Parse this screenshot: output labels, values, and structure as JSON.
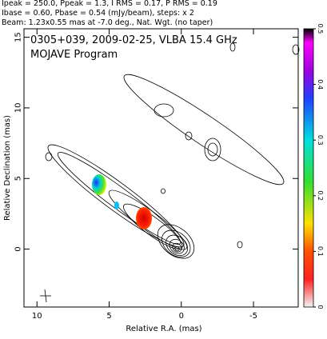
{
  "chart_data": {
    "type": "contour",
    "header_lines": [
      "Ipeak = 250.0, Ppeak = 1.3, I RMS = 0.17, P RMS = 0.19",
      "Ibase = 0.60, Pbase = 0.54 (mJy/beam), steps: x 2",
      "Beam: 1.23x0.55 mas at -7.0 deg., Nat. Wgt. (no taper)"
    ],
    "title": "0305+039, 2009-02-25, VLBA 15.4 GHz",
    "subtitle": "MOJAVE Program",
    "xlabel": "Relative R.A. (mas)",
    "ylabel": "Relative Declination (mas)",
    "xlim": [
      10.9,
      -8.1
    ],
    "ylim": [
      -4.1,
      15.6
    ],
    "xticks": [
      10,
      5,
      0,
      -5
    ],
    "yticks": [
      0,
      5,
      10,
      15
    ],
    "colorbar": {
      "lim": [
        0,
        0.5
      ],
      "ticks": [
        0,
        0.1,
        0.2,
        0.3,
        0.4,
        0.5
      ]
    }
  }
}
